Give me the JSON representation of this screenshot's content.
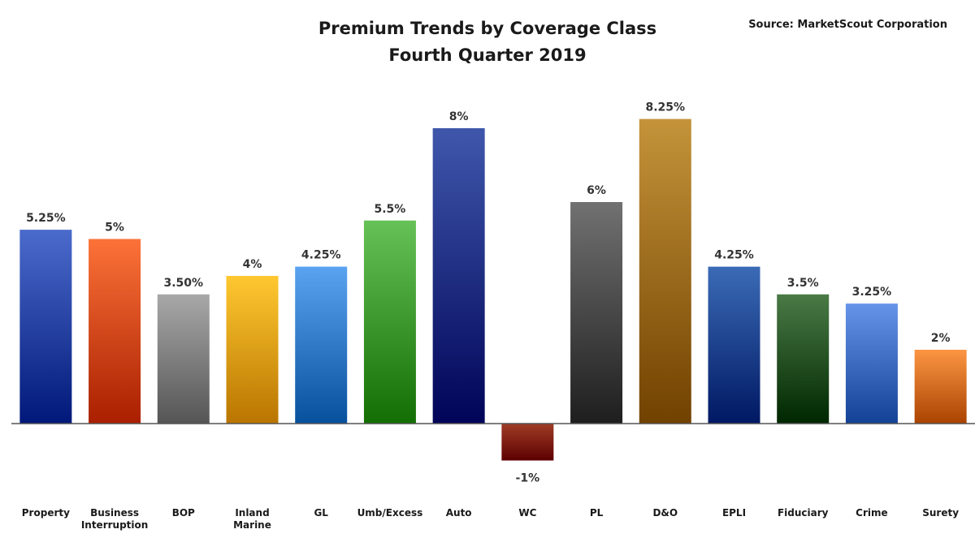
{
  "chart_data": {
    "type": "bar",
    "title": "Premium Trends by Coverage Class",
    "subtitle": "Fourth Quarter 2019",
    "source": "Source: MarketScout Corporation",
    "categories": [
      "Property",
      "Business Interruption",
      "BOP",
      "Inland Marine",
      "GL",
      "Umb/Excess",
      "Auto",
      "WC",
      "PL",
      "D&O",
      "EPLI",
      "Fiduciary",
      "Crime",
      "Surety"
    ],
    "values": [
      5.25,
      5,
      3.5,
      4,
      4.25,
      5.5,
      8,
      -1,
      6,
      8.25,
      4.25,
      3.5,
      3.25,
      2
    ],
    "data_labels": [
      "5.25%",
      "5%",
      "3.50%",
      "4%",
      "4.25%",
      "5.5%",
      "8%",
      "-1%",
      "6%",
      "8.25%",
      "4.25%",
      "3.5%",
      "3.25%",
      "2%"
    ],
    "colors": [
      "#2f4fb0",
      "#e0561c",
      "#8c8c8c",
      "#f0ac14",
      "#3d87d4",
      "#4aa63a",
      "#233b8f",
      "#8e2a14",
      "#555555",
      "#a8781e",
      "#1f4f9a",
      "#2e5e2a",
      "#4a78cc",
      "#e07a28"
    ],
    "axis_color": "#555555",
    "grid": false,
    "legend": "none",
    "xlabel": "",
    "ylabel": ""
  }
}
